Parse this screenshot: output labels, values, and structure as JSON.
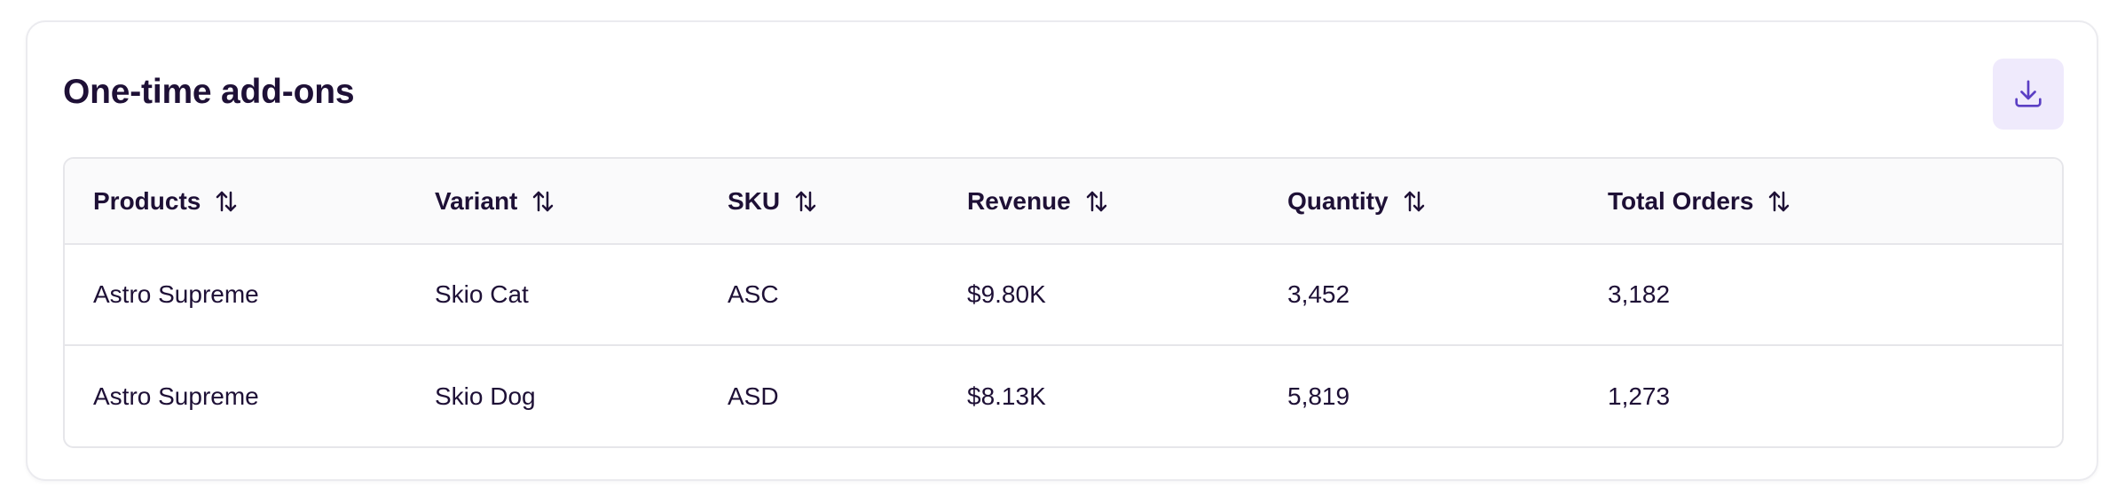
{
  "card": {
    "title": "One-time add-ons",
    "download_icon": "download-icon"
  },
  "table": {
    "columns": [
      {
        "label": "Products",
        "icon": "sort-arrows-icon"
      },
      {
        "label": "Variant",
        "icon": "sort-arrows-icon"
      },
      {
        "label": "SKU",
        "icon": "sort-arrows-icon"
      },
      {
        "label": "Revenue",
        "icon": "sort-arrows-icon"
      },
      {
        "label": "Quantity",
        "icon": "sort-arrows-icon"
      },
      {
        "label": "Total Orders",
        "icon": "sort-arrows-icon"
      }
    ],
    "rows": [
      [
        "Astro Supreme",
        "Skio Cat",
        "ASC",
        "$9.80K",
        "3,452",
        "3,182"
      ],
      [
        "Astro Supreme",
        "Skio Dog",
        "ASD",
        "$8.13K",
        "5,819",
        "1,273"
      ]
    ]
  },
  "colors": {
    "text": "#1e1036",
    "accent": "#5b3fc4",
    "button_bg": "#efeafc",
    "border": "#e6e6ea",
    "header_bg": "#fafafb"
  }
}
